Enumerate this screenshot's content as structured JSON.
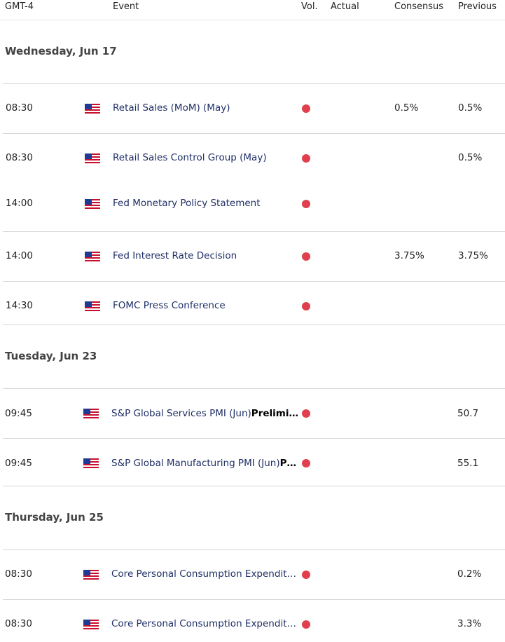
{
  "header": {
    "timezone": "GMT-4",
    "event": "Event",
    "vol": "Vol.",
    "actual": "Actual",
    "consensus": "Consensus",
    "previous": "Previous"
  },
  "colors": {
    "volatility_high": "#e0404d",
    "event_text": "#1f2f66"
  },
  "days": [
    {
      "title": "Wednesday, Jun 17",
      "events": [
        {
          "time": "08:30",
          "flag": "us-flag-icon",
          "event": "Retail Sales (MoM) (May)",
          "event_bold": "",
          "consensus": "0.5%",
          "previous": "0.5%"
        },
        {
          "time": "08:30",
          "flag": "us-flag-icon",
          "event": "Retail Sales Control Group (May)",
          "event_bold": "",
          "consensus": "",
          "previous": "0.5%"
        },
        {
          "time": "14:00",
          "flag": "us-flag-icon",
          "event": "Fed Monetary Policy Statement",
          "event_bold": "",
          "consensus": "",
          "previous": ""
        },
        {
          "time": "14:00",
          "flag": "us-flag-icon",
          "event": "Fed Interest Rate Decision",
          "event_bold": "",
          "consensus": "3.75%",
          "previous": "3.75%"
        },
        {
          "time": "14:30",
          "flag": "us-flag-icon",
          "event": "FOMC Press Conference",
          "event_bold": "",
          "consensus": "",
          "previous": ""
        }
      ]
    },
    {
      "title": "Tuesday, Jun 23",
      "events": [
        {
          "time": "09:45",
          "flag": "us-flag-icon",
          "event": "S&P Global Services PMI (Jun)",
          "event_bold": "Prelimi…",
          "consensus": "",
          "previous": "50.7"
        },
        {
          "time": "09:45",
          "flag": "us-flag-icon",
          "event": "S&P Global Manufacturing PMI (Jun)",
          "event_bold": "P…",
          "consensus": "",
          "previous": "55.1"
        }
      ]
    },
    {
      "title": "Thursday, Jun 25",
      "events": [
        {
          "time": "08:30",
          "flag": "us-flag-icon",
          "event": "Core Personal Consumption Expendit…",
          "event_bold": "",
          "consensus": "",
          "previous": "0.2%"
        },
        {
          "time": "08:30",
          "flag": "us-flag-icon",
          "event": "Core Personal Consumption Expendit…",
          "event_bold": "",
          "consensus": "",
          "previous": "3.3%"
        }
      ]
    }
  ]
}
